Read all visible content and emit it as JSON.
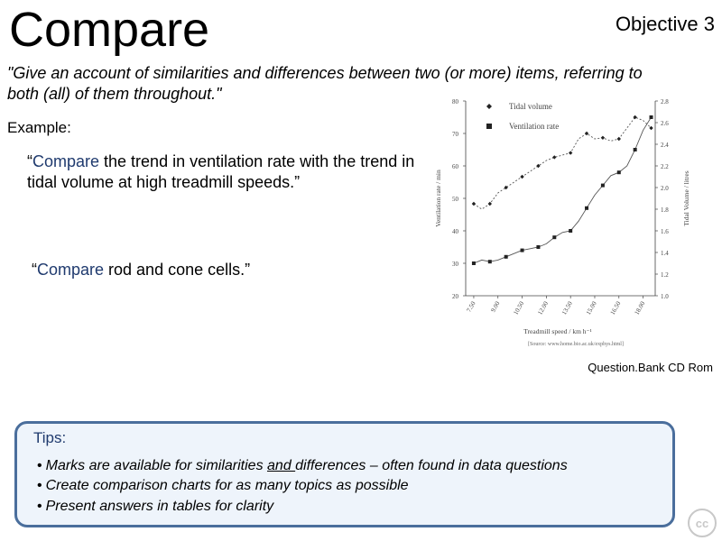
{
  "slide": {
    "title": "Compare",
    "objective": "Objective 3",
    "quote": "\"Give an account of similarities and differences between two (or more) items, referring to both (all) of them throughout.\"",
    "example_label": "Example:",
    "example1": {
      "keyword": "Compare",
      "rest": " the trend in ventilation rate with the trend in tidal volume at high treadmill speeds.”",
      "open_quote": "“"
    },
    "example2": {
      "keyword": "Compare",
      "rest": " rod and cone cells.”",
      "open_quote": "“"
    },
    "source": "Question.Bank CD Rom",
    "tips": {
      "title": "Tips:",
      "items": [
        {
          "before": "Marks are available for similarities ",
          "underlined": "and ",
          "after": "differences – often found in data questions"
        },
        {
          "text": "Create comparison  charts for as many topics as possible"
        },
        {
          "text": "Present answers in tables for clarity"
        }
      ]
    },
    "cc_badge": "cc"
  },
  "chart_data": {
    "type": "line",
    "xlabel": "Treadmill speed / km h⁻¹",
    "ylabel_left": "Ventilation rate / min",
    "ylabel_right": "Tidal Volume / litres",
    "categories": [
      "7.50",
      "9.00",
      "10.50",
      "12.00",
      "13.50",
      "15.00",
      "16.50",
      "18.00"
    ],
    "y_left_ticks": [
      "20",
      "30",
      "40",
      "50",
      "60",
      "70",
      "80"
    ],
    "y_left_range": [
      20,
      80
    ],
    "y_right_ticks": [
      "1.0",
      "1.2",
      "1.4",
      "1.6",
      "1.8",
      "2.0",
      "2.2",
      "2.4",
      "2.6",
      "2.8"
    ],
    "y_right_range": [
      1.0,
      2.8
    ],
    "x_range": [
      7.0,
      18.75
    ],
    "legend_position": "top",
    "source_note": "[Source: www.home.bio.ac.uk/exphys.html]",
    "series": [
      {
        "name": "Tidal volume",
        "axis": "right",
        "marker": "diamond",
        "line_style": "dashed",
        "points": [
          [
            7.5,
            1.85
          ],
          [
            8.0,
            1.8
          ],
          [
            8.5,
            1.85
          ],
          [
            9.0,
            1.95
          ],
          [
            9.5,
            2.0
          ],
          [
            10.0,
            2.05
          ],
          [
            10.5,
            2.1
          ],
          [
            11.0,
            2.15
          ],
          [
            11.5,
            2.2
          ],
          [
            12.0,
            2.25
          ],
          [
            12.5,
            2.28
          ],
          [
            13.0,
            2.3
          ],
          [
            13.5,
            2.32
          ],
          [
            14.0,
            2.45
          ],
          [
            14.5,
            2.5
          ],
          [
            15.0,
            2.45
          ],
          [
            15.5,
            2.46
          ],
          [
            16.0,
            2.43
          ],
          [
            16.5,
            2.45
          ],
          [
            17.0,
            2.55
          ],
          [
            17.5,
            2.65
          ],
          [
            18.0,
            2.62
          ],
          [
            18.5,
            2.55
          ]
        ]
      },
      {
        "name": "Ventilation rate",
        "axis": "left",
        "marker": "square",
        "line_style": "solid",
        "points": [
          [
            7.5,
            30
          ],
          [
            8.0,
            31
          ],
          [
            8.5,
            30.5
          ],
          [
            9.0,
            31
          ],
          [
            9.5,
            32
          ],
          [
            10.0,
            33
          ],
          [
            10.5,
            34
          ],
          [
            11.0,
            34.5
          ],
          [
            11.5,
            35
          ],
          [
            12.0,
            36
          ],
          [
            12.5,
            38
          ],
          [
            13.0,
            39.5
          ],
          [
            13.5,
            40
          ],
          [
            14.0,
            43
          ],
          [
            14.5,
            47
          ],
          [
            15.0,
            51
          ],
          [
            15.5,
            54
          ],
          [
            16.0,
            57
          ],
          [
            16.5,
            58
          ],
          [
            17.0,
            60
          ],
          [
            17.5,
            65
          ],
          [
            18.0,
            71
          ],
          [
            18.5,
            75
          ]
        ]
      }
    ]
  }
}
